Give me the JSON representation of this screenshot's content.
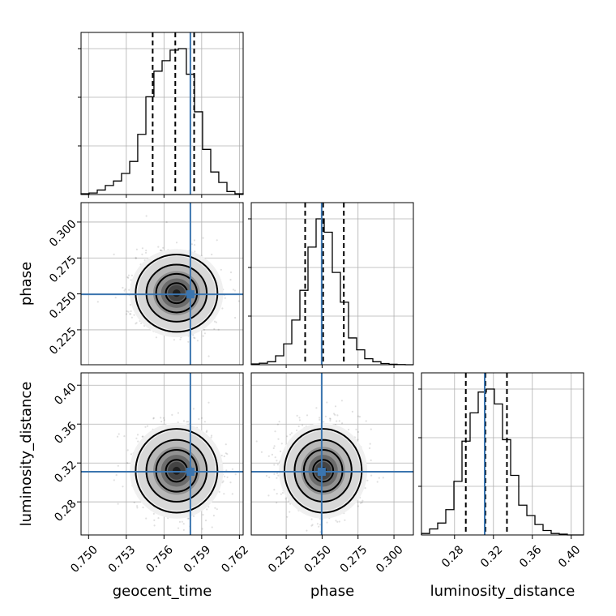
{
  "chart_data": {
    "type": "corner",
    "parameters": [
      "geocent_time",
      "phase",
      "luminosity_distance"
    ],
    "axis_labels": {
      "x": [
        "geocent_time",
        "phase",
        "luminosity_distance"
      ],
      "y": [
        "phase",
        "luminosity_distance"
      ]
    },
    "ranges": {
      "geocent_time": [
        0.7494,
        0.7623
      ],
      "phase": [
        0.2007,
        0.3135
      ],
      "luminosity_distance": [
        0.246,
        0.4127
      ]
    },
    "ticks": {
      "geocent_time": [
        0.75,
        0.753,
        0.756,
        0.759,
        0.762
      ],
      "phase": [
        0.225,
        0.25,
        0.275,
        0.3
      ],
      "luminosity_distance": [
        0.28,
        0.32,
        0.36,
        0.4
      ]
    },
    "tick_labels": {
      "geocent_time": [
        "0.750",
        "0.753",
        "0.756",
        "0.759",
        "0.762"
      ],
      "phase": [
        "0.225",
        "0.250",
        "0.275",
        "0.300"
      ],
      "luminosity_distance": [
        "0.28",
        "0.32",
        "0.36",
        "0.40"
      ]
    },
    "truths": {
      "geocent_time": 0.7581,
      "phase": 0.2497,
      "luminosity_distance": 0.311
    },
    "quantiles": {
      "geocent_time": [
        0.7551,
        0.7569,
        0.7584
      ],
      "phase": [
        0.2382,
        0.2507,
        0.2651
      ],
      "luminosity_distance": [
        0.2916,
        0.3118,
        0.3339
      ]
    },
    "histograms": {
      "geocent_time": {
        "edges": [
          0.7494,
          0.75004,
          0.75069,
          0.75133,
          0.75198,
          0.75262,
          0.75327,
          0.75391,
          0.75456,
          0.7552,
          0.75585,
          0.75649,
          0.75714,
          0.75778,
          0.75843,
          0.75907,
          0.75972,
          0.76036,
          0.76101,
          0.76165,
          0.7623
        ],
        "counts": [
          0.005,
          0.01,
          0.03,
          0.06,
          0.09,
          0.14,
          0.22,
          0.4,
          0.65,
          0.82,
          0.89,
          0.96,
          0.97,
          0.8,
          0.55,
          0.3,
          0.15,
          0.08,
          0.02,
          0.005
        ]
      },
      "phase": {
        "edges": [
          0.2007,
          0.20634,
          0.21198,
          0.21762,
          0.22326,
          0.2289,
          0.23454,
          0.24018,
          0.24582,
          0.25146,
          0.2571,
          0.26274,
          0.26838,
          0.27402,
          0.27966,
          0.2853,
          0.29094,
          0.29658,
          0.30222,
          0.30786,
          0.3135
        ],
        "counts": [
          0.005,
          0.01,
          0.02,
          0.06,
          0.14,
          0.3,
          0.5,
          0.79,
          0.98,
          0.89,
          0.62,
          0.42,
          0.18,
          0.1,
          0.04,
          0.02,
          0.008,
          0.003,
          0.001,
          0.0
        ]
      },
      "luminosity_distance": {
        "edges": [
          0.246,
          0.25434,
          0.26267,
          0.27101,
          0.27934,
          0.28768,
          0.29601,
          0.30435,
          0.31268,
          0.32102,
          0.32935,
          0.33769,
          0.34602,
          0.35436,
          0.36269,
          0.37103,
          0.37936,
          0.3877,
          0.39603,
          0.40437,
          0.4127
        ],
        "counts": [
          0.01,
          0.04,
          0.08,
          0.17,
          0.36,
          0.63,
          0.82,
          0.96,
          0.98,
          0.88,
          0.64,
          0.4,
          0.2,
          0.13,
          0.07,
          0.03,
          0.01,
          0.005,
          0.0,
          0.0
        ]
      }
    },
    "pairs": [
      {
        "x": "geocent_time",
        "y": "phase",
        "center": [
          0.757,
          0.2505
        ],
        "sigma": [
          0.00155,
          0.0128
        ]
      },
      {
        "x": "geocent_time",
        "y": "luminosity_distance",
        "center": [
          0.757,
          0.312
        ],
        "sigma": [
          0.00155,
          0.0205
        ]
      },
      {
        "x": "phase",
        "y": "luminosity_distance",
        "center": [
          0.2507,
          0.312
        ],
        "sigma": [
          0.0128,
          0.0205
        ]
      }
    ]
  }
}
